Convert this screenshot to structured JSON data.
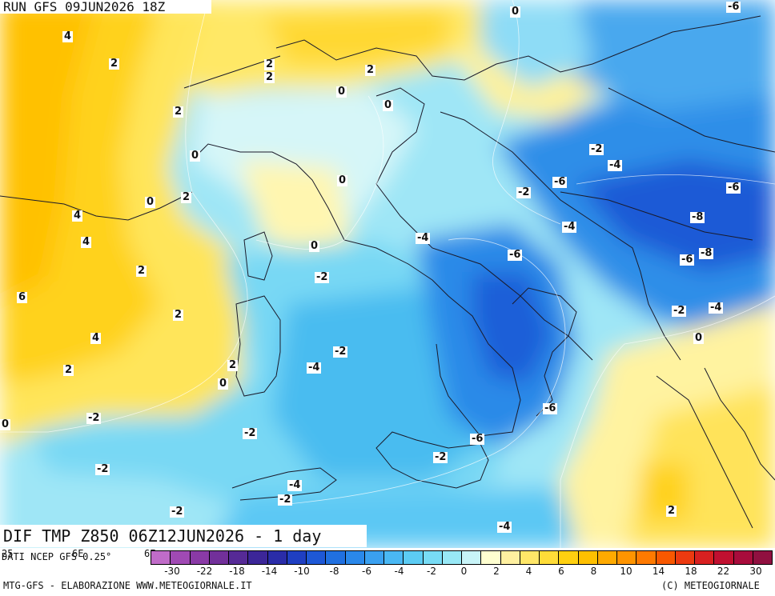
{
  "header": {
    "run_label": "RUN GFS 09JUN2026 18Z"
  },
  "footer_title": "DIF TMP Z850 06Z12JUN2026 - 1 day",
  "map": {
    "title": "DIF TMP Z850 06Z12JUN2026 - 1 day",
    "field": "850 hPa temperature difference (1 day)",
    "contour_labels": [
      {
        "text": "0"
      },
      {
        "text": "-6"
      },
      {
        "text": "4"
      },
      {
        "text": "2"
      },
      {
        "text": "2"
      },
      {
        "text": "2"
      },
      {
        "text": "2"
      },
      {
        "text": "0"
      },
      {
        "text": "0"
      },
      {
        "text": "2"
      },
      {
        "text": "0"
      },
      {
        "text": "2"
      },
      {
        "text": "0"
      },
      {
        "text": "0"
      },
      {
        "text": "-2"
      },
      {
        "text": "-4"
      },
      {
        "text": "-6"
      },
      {
        "text": "-2"
      },
      {
        "text": "-6"
      },
      {
        "text": "-8"
      },
      {
        "text": "4"
      },
      {
        "text": "4"
      },
      {
        "text": "-4"
      },
      {
        "text": "0"
      },
      {
        "text": "-4"
      },
      {
        "text": "2"
      },
      {
        "text": "-6"
      },
      {
        "text": "-8"
      },
      {
        "text": "-6"
      },
      {
        "text": "-2"
      },
      {
        "text": "6"
      },
      {
        "text": "-2"
      },
      {
        "text": "-4"
      },
      {
        "text": "2"
      },
      {
        "text": "4"
      },
      {
        "text": "0"
      },
      {
        "text": "-2"
      },
      {
        "text": "-4"
      },
      {
        "text": "2"
      },
      {
        "text": "2"
      },
      {
        "text": "0"
      },
      {
        "text": "-6"
      },
      {
        "text": "0"
      },
      {
        "text": "-2"
      },
      {
        "text": "-2"
      },
      {
        "text": "-6"
      },
      {
        "text": "-2"
      },
      {
        "text": "-2"
      },
      {
        "text": "-4"
      },
      {
        "text": "-2"
      },
      {
        "text": "-2"
      },
      {
        "text": "-4"
      },
      {
        "text": "2"
      }
    ]
  },
  "source_line": "DATI NCEP GFS 0.25°",
  "edge_labels": [
    "25",
    "6E",
    "6E"
  ],
  "colorbar": {
    "colors": [
      "#c06cc8",
      "#a04ab4",
      "#8a3aa6",
      "#72309a",
      "#562a96",
      "#3c2698",
      "#2a2ca8",
      "#1f3fc2",
      "#1e58d6",
      "#2070e0",
      "#2a88ea",
      "#3aa0f0",
      "#4ab8f4",
      "#5cccf4",
      "#78dcf6",
      "#98e8f6",
      "#c8f4f8",
      "#ffffd0",
      "#fff0a0",
      "#ffe668",
      "#ffdc38",
      "#ffd010",
      "#ffc000",
      "#ffaa00",
      "#ff9400",
      "#ff7a00",
      "#f85800",
      "#ec3a10",
      "#d82020",
      "#c01030",
      "#a80c3c",
      "#901040"
    ],
    "ticks": [
      "-30",
      "-22",
      "-18",
      "-14",
      "-10",
      "-8",
      "-6",
      "-4",
      "-2",
      "0",
      "2",
      "4",
      "6",
      "8",
      "10",
      "14",
      "18",
      "22",
      "30"
    ]
  },
  "credits": {
    "left": "MTG-GFS - ELABORAZIONE WWW.METEOGIORNALE.IT",
    "right": "(C) METEOGIORNALE"
  }
}
